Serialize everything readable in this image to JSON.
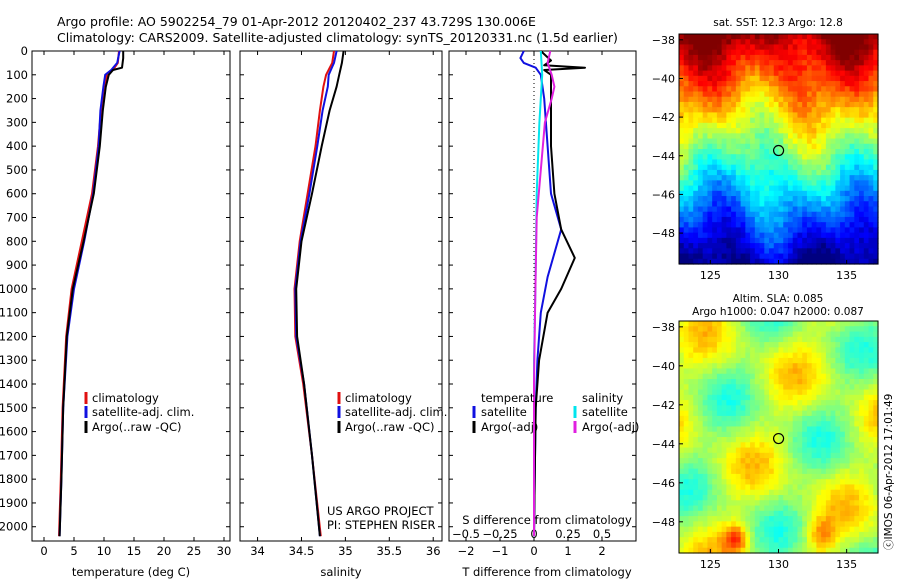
{
  "header": {
    "line1": "Argo profile: AO 5902254_79 01-Apr-2012 20120402_237 43.729S 130.006E",
    "line2": "Climatology: CARS2009. Satellite-adjusted climatology: synTS_20120331.nc (1.5d earlier)"
  },
  "credits": {
    "project": "US ARGO PROJECT",
    "pi": "PI: STEPHEN RISER",
    "stamp": "ⓒIMOS 06-Apr-2012 17:01:49"
  },
  "colors": {
    "climatology": "#e01010",
    "satellite": "#1010e0",
    "argo": "#000000",
    "s_satellite": "#00e5ee",
    "s_argo": "#e020e0",
    "marker": "#000000"
  },
  "chart_data": [
    {
      "type": "line",
      "id": "temperature",
      "xlabel": "temperature (deg C)",
      "ylabel": "",
      "xlim": [
        -2,
        31
      ],
      "ylim": [
        2060,
        0
      ],
      "x_ticks": [
        0,
        5,
        10,
        15,
        20,
        25,
        30
      ],
      "y_ticks": [
        0,
        100,
        200,
        300,
        400,
        500,
        600,
        700,
        800,
        900,
        1000,
        1100,
        1200,
        1300,
        1400,
        1500,
        1600,
        1700,
        1800,
        1900,
        2000
      ],
      "legend": {
        "position": "lower-middle",
        "entries": [
          "climatology",
          "satellite-adj. clim.",
          "Argo(..raw -QC)"
        ]
      },
      "series": [
        {
          "name": "climatology",
          "color_key": "climatology",
          "depth": [
            0,
            50,
            80,
            100,
            150,
            250,
            400,
            600,
            800,
            1000,
            1200,
            1500,
            1800,
            2040
          ],
          "values": [
            12.5,
            12.3,
            11.5,
            10.5,
            10.0,
            9.5,
            9.0,
            8.0,
            6.3,
            4.6,
            3.7,
            3.1,
            2.8,
            2.5
          ]
        },
        {
          "name": "satellite-adj. clim.",
          "color_key": "satellite",
          "depth": [
            0,
            50,
            80,
            100,
            150,
            250,
            400,
            600,
            800,
            1000,
            1200,
            1500,
            1800,
            2040
          ],
          "values": [
            12.6,
            12.2,
            11.2,
            10.2,
            9.9,
            9.4,
            9.1,
            8.2,
            6.7,
            5.0,
            3.9,
            3.2,
            2.9,
            2.6
          ]
        },
        {
          "name": "Argo(..raw -QC)",
          "color_key": "argo",
          "depth": [
            0,
            30,
            70,
            80,
            100,
            150,
            250,
            400,
            600,
            800,
            1000,
            1200,
            1500,
            1800,
            2040
          ],
          "values": [
            13.2,
            13.2,
            13.0,
            11.5,
            10.8,
            10.3,
            9.8,
            9.3,
            8.3,
            6.6,
            4.8,
            3.8,
            3.2,
            2.9,
            2.6
          ]
        }
      ]
    },
    {
      "type": "line",
      "id": "salinity",
      "xlabel": "salinity",
      "ylabel": "",
      "xlim": [
        33.8,
        36.1
      ],
      "ylim": [
        2060,
        0
      ],
      "x_ticks": [
        34,
        34.5,
        35,
        35.5,
        36
      ],
      "legend": {
        "position": "lower-right",
        "entries": [
          "climatology",
          "satellite-adj. clim.",
          "Argo(..raw -QC)"
        ]
      },
      "series": [
        {
          "name": "climatology",
          "color_key": "climatology",
          "depth": [
            0,
            50,
            100,
            150,
            250,
            400,
            600,
            800,
            1000,
            1200,
            1400,
            1700,
            2040
          ],
          "values": [
            34.87,
            34.85,
            34.78,
            34.75,
            34.71,
            34.66,
            34.57,
            34.48,
            34.42,
            34.43,
            34.52,
            34.62,
            34.72
          ]
        },
        {
          "name": "satellite-adj. clim.",
          "color_key": "satellite",
          "depth": [
            0,
            50,
            100,
            150,
            250,
            400,
            600,
            800,
            1000,
            1200,
            1400,
            1700,
            2040
          ],
          "values": [
            34.9,
            34.87,
            34.81,
            34.8,
            34.74,
            34.68,
            34.59,
            34.49,
            34.43,
            34.44,
            34.53,
            34.62,
            34.71
          ]
        },
        {
          "name": "Argo(..raw -QC)",
          "color_key": "argo",
          "depth": [
            0,
            50,
            100,
            150,
            250,
            400,
            600,
            800,
            1000,
            1200,
            1400,
            1700,
            2040
          ],
          "values": [
            34.98,
            34.96,
            34.93,
            34.9,
            34.82,
            34.73,
            34.62,
            34.5,
            34.44,
            34.45,
            34.53,
            34.62,
            34.71
          ]
        }
      ]
    },
    {
      "type": "line",
      "id": "difference",
      "title": "",
      "xlabel": "T difference from climatology",
      "x2label": "S difference from climatology",
      "xlim": [
        -2.5,
        3.0
      ],
      "ylim": [
        2060,
        0
      ],
      "x_ticks": [
        -2,
        -1,
        0,
        1,
        2
      ],
      "x_tick_labels": [
        "−2",
        "−1",
        "0",
        "1",
        "2"
      ],
      "x2_ticks": [
        -0.5,
        -0.25,
        0,
        0.25,
        0.5
      ],
      "x2_tick_labels": [
        "−0.5",
        "−0.25",
        "0",
        "0.25",
        "0.5"
      ],
      "legend": {
        "position": "lower-middle",
        "temperature_header": "temperature",
        "salinity_header": "salinity",
        "entries": [
          "satellite",
          "Argo(-adj)",
          "satellite",
          "Argo(-adj)"
        ]
      },
      "series": [
        {
          "name": "satellite",
          "group": "temperature",
          "color_key": "satellite",
          "depth": [
            0,
            30,
            50,
            70,
            100,
            200,
            400,
            600,
            750,
            850,
            950,
            1100,
            1300,
            1500,
            1800,
            2040
          ],
          "values": [
            -0.3,
            -0.4,
            -0.3,
            0.05,
            0.2,
            0.3,
            0.4,
            0.5,
            0.8,
            0.6,
            0.4,
            0.2,
            0.1,
            0.05,
            0.02,
            0.0
          ]
        },
        {
          "name": "Argo(-adj)",
          "group": "temperature",
          "color_key": "argo",
          "depth": [
            0,
            40,
            60,
            70,
            80,
            100,
            200,
            400,
            600,
            750,
            870,
            1000,
            1100,
            1300,
            1500,
            1800,
            2040
          ],
          "values": [
            0.2,
            0.5,
            0.3,
            1.5,
            0.3,
            0.5,
            0.5,
            0.5,
            0.6,
            0.8,
            1.2,
            0.8,
            0.4,
            0.15,
            0.05,
            0.02,
            0.0
          ]
        },
        {
          "name": "satellite",
          "group": "salinity",
          "color_key": "s_satellite",
          "depth": [
            0,
            100,
            300,
            600,
            1000,
            1300,
            1600,
            2040
          ],
          "values": [
            0.05,
            0.06,
            0.04,
            0.02,
            0.01,
            0.0,
            0.0,
            0.0
          ]
        },
        {
          "name": "Argo(-adj)",
          "group": "salinity",
          "color_key": "s_argo",
          "depth": [
            0,
            50,
            100,
            150,
            200,
            300,
            500,
            700,
            1000,
            1400,
            2040
          ],
          "values": [
            0.12,
            0.1,
            0.13,
            0.15,
            0.13,
            0.08,
            0.05,
            0.02,
            0.01,
            0.0,
            0.0
          ]
        }
      ]
    },
    {
      "type": "heatmap",
      "id": "sst_map",
      "title": "sat. SST: 12.3  Argo: 12.8",
      "xlim": [
        122.7,
        137.3
      ],
      "ylim": [
        -49.6,
        -37.7
      ],
      "x_ticks": [
        125,
        130,
        135
      ],
      "y_ticks": [
        -38,
        -40,
        -42,
        -44,
        -46,
        -48
      ],
      "colormap": "jet",
      "marker": {
        "lon": 130.006,
        "lat": -43.729
      }
    },
    {
      "type": "heatmap",
      "id": "sla_map",
      "title_line1": "Altim. SLA: 0.085",
      "title_line2": "Argo h1000: 0.047 h2000: 0.087",
      "xlim": [
        122.7,
        137.3
      ],
      "ylim": [
        -49.6,
        -37.7
      ],
      "x_ticks": [
        125,
        130,
        135
      ],
      "y_ticks": [
        -38,
        -40,
        -42,
        -44,
        -46,
        -48
      ],
      "colormap": "jet",
      "marker": {
        "lon": 130.006,
        "lat": -43.729
      }
    }
  ]
}
